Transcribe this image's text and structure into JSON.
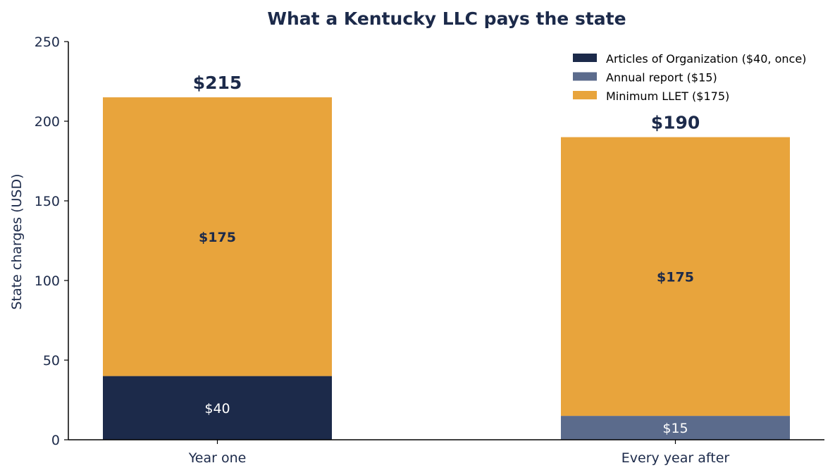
{
  "chart_data": {
    "type": "bar",
    "stacked": true,
    "title": "What a Kentucky LLC pays the state",
    "xlabel": "",
    "ylabel": "State charges (USD)",
    "ylim": [
      0,
      250
    ],
    "yticks": [
      0,
      50,
      100,
      150,
      200,
      250
    ],
    "categories": [
      "Year one",
      "Every year after"
    ],
    "series": [
      {
        "name": "Articles of Organization ($40, once)",
        "color": "#1c2a4a",
        "label_color": "#ffffff",
        "label_bold": false,
        "values": [
          40,
          0
        ],
        "labels": [
          "$40",
          ""
        ]
      },
      {
        "name": "Annual report ($15)",
        "color": "#5b6b8c",
        "label_color": "#ffffff",
        "label_bold": false,
        "values": [
          0,
          15
        ],
        "labels": [
          "",
          "$15"
        ]
      },
      {
        "name": "Minimum LLET ($175)",
        "color": "#e8a43c",
        "label_color": "#1c2a4a",
        "label_bold": true,
        "values": [
          175,
          175
        ],
        "labels": [
          "$175",
          "$175"
        ]
      }
    ],
    "totals": [
      215,
      190
    ],
    "total_labels": [
      "$215",
      "$190"
    ],
    "legend_position": "top-right",
    "grid": false
  }
}
